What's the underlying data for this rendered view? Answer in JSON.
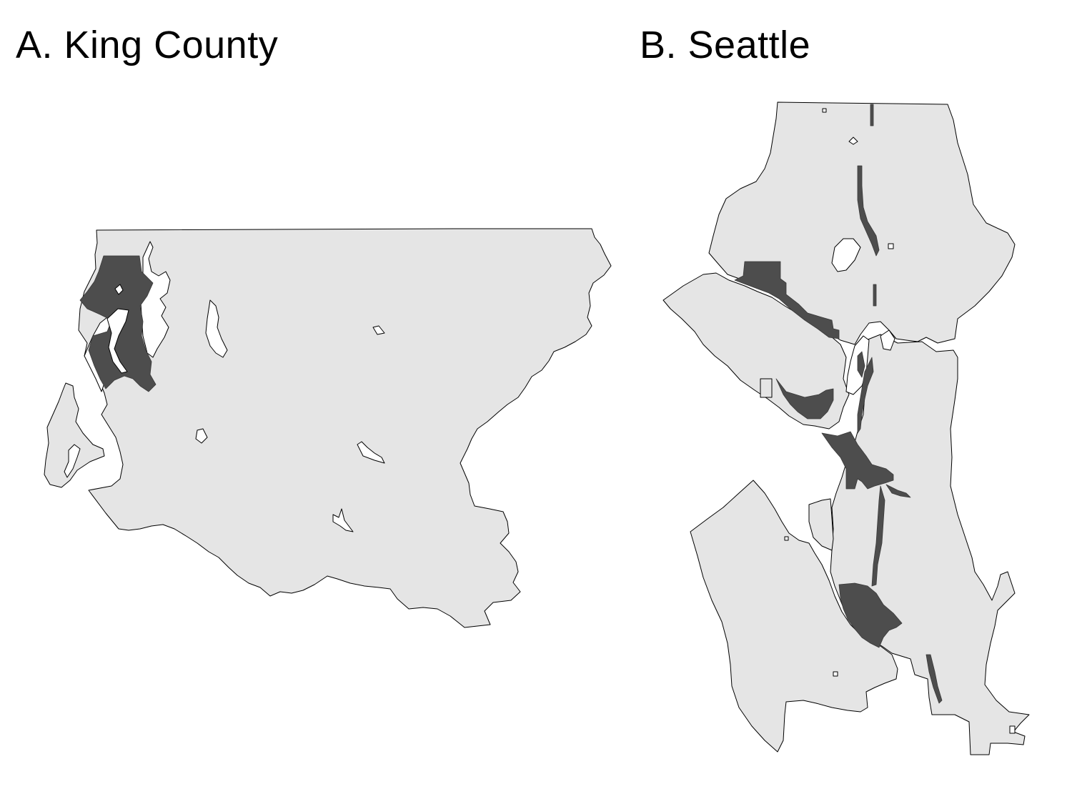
{
  "panels": {
    "a": {
      "title": "A. King County"
    },
    "b": {
      "title": "B. Seattle"
    }
  },
  "colors": {
    "land": "#e5e5e5",
    "highlight": "#4d4d4d",
    "water": "#ffffff",
    "outline": "#000000"
  }
}
